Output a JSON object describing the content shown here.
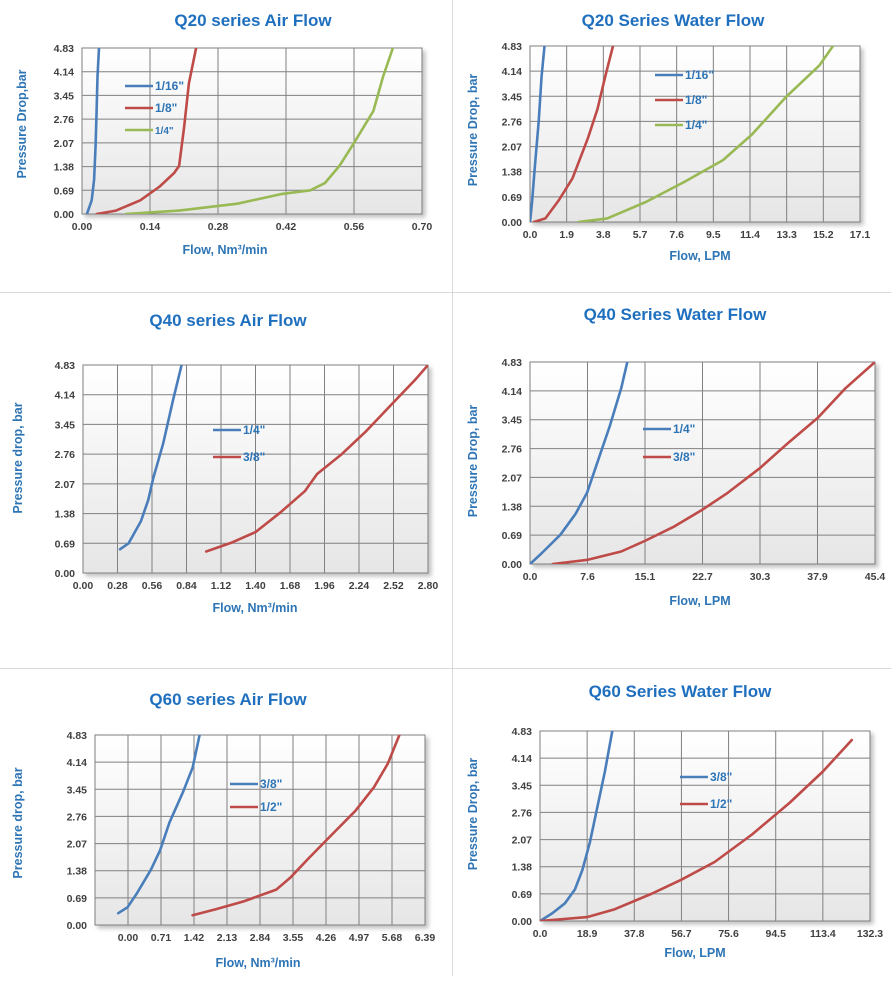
{
  "colors": {
    "blue": "#4a7ebb",
    "red": "#be4b48",
    "green": "#98b954",
    "title": "#1f6fbf",
    "label": "#2e75b6",
    "grid": "#808080",
    "tick": "#404040"
  },
  "chart_data": [
    {
      "type": "line",
      "title": "Q20 series Air Flow",
      "xlabel": "Flow, Nm³/min",
      "ylabel": "Pressure Drop,bar",
      "xticks": [
        "0.00",
        "0.14",
        "0.28",
        "0.42",
        "0.56",
        "0.70"
      ],
      "yticks": [
        "0.00",
        "0.69",
        "1.38",
        "2.07",
        "2.76",
        "3.45",
        "4.14",
        "4.83"
      ],
      "xlim": [
        0,
        0.7
      ],
      "ylim": [
        0,
        4.83
      ],
      "legend": "left",
      "series": [
        {
          "name": "1/16\"",
          "color": "blue",
          "points": [
            [
              0.01,
              0
            ],
            [
              0.02,
              0.4
            ],
            [
              0.025,
              1.0
            ],
            [
              0.028,
              2.0
            ],
            [
              0.03,
              3.0
            ],
            [
              0.032,
              4.0
            ],
            [
              0.035,
              4.83
            ]
          ]
        },
        {
          "name": "1/8\"",
          "color": "red",
          "points": [
            [
              0.03,
              0
            ],
            [
              0.07,
              0.1
            ],
            [
              0.12,
              0.4
            ],
            [
              0.16,
              0.8
            ],
            [
              0.19,
              1.2
            ],
            [
              0.2,
              1.4
            ],
            [
              0.21,
              2.5
            ],
            [
              0.22,
              3.8
            ],
            [
              0.235,
              4.83
            ]
          ]
        },
        {
          "name": "1/4\"",
          "color": "green",
          "points": [
            [
              0.09,
              0
            ],
            [
              0.2,
              0.1
            ],
            [
              0.32,
              0.3
            ],
            [
              0.41,
              0.58
            ],
            [
              0.47,
              0.69
            ],
            [
              0.5,
              0.9
            ],
            [
              0.53,
              1.4
            ],
            [
              0.56,
              2.07
            ],
            [
              0.6,
              3.0
            ],
            [
              0.62,
              4.0
            ],
            [
              0.64,
              4.83
            ]
          ]
        }
      ]
    },
    {
      "type": "line",
      "title": "Q20 Series Water Flow",
      "xlabel": "Flow, LPM",
      "ylabel": "Pressure Drop, bar",
      "xticks": [
        "0.0",
        "1.9",
        "3.8",
        "5.7",
        "7.6",
        "9.5",
        "11.4",
        "13.3",
        "15.2",
        "17.1"
      ],
      "yticks": [
        "0.00",
        "0.69",
        "1.38",
        "2.07",
        "2.76",
        "3.45",
        "4.14",
        "4.83"
      ],
      "xlim": [
        0,
        17.1
      ],
      "ylim": [
        0,
        4.83
      ],
      "legend": "left",
      "series": [
        {
          "name": "1/16\"",
          "color": "blue",
          "points": [
            [
              0,
              0
            ],
            [
              0.1,
              0.5
            ],
            [
              0.25,
              1.5
            ],
            [
              0.45,
              2.76
            ],
            [
              0.6,
              4.0
            ],
            [
              0.75,
              4.83
            ]
          ]
        },
        {
          "name": "1/8\"",
          "color": "red",
          "points": [
            [
              0.2,
              0
            ],
            [
              0.8,
              0.1
            ],
            [
              1.5,
              0.6
            ],
            [
              2.2,
              1.2
            ],
            [
              3.0,
              2.3
            ],
            [
              3.5,
              3.1
            ],
            [
              3.9,
              4.0
            ],
            [
              4.3,
              4.83
            ]
          ]
        },
        {
          "name": "1/4\"",
          "color": "green",
          "points": [
            [
              2.5,
              0
            ],
            [
              4.0,
              0.1
            ],
            [
              6.0,
              0.55
            ],
            [
              8.0,
              1.1
            ],
            [
              10.0,
              1.7
            ],
            [
              11.5,
              2.4
            ],
            [
              13.3,
              3.45
            ],
            [
              15.0,
              4.3
            ],
            [
              15.7,
              4.83
            ]
          ]
        }
      ]
    },
    {
      "type": "line",
      "title": "Q40 series Air Flow",
      "xlabel": "Flow, Nm³/min",
      "ylabel": "Pressure drop, bar",
      "xticks": [
        "0.00",
        "0.28",
        "0.56",
        "0.84",
        "1.12",
        "1.40",
        "1.68",
        "1.96",
        "2.24",
        "2.52",
        "2.80"
      ],
      "yticks": [
        "0.00",
        "0.69",
        "1.38",
        "2.07",
        "2.76",
        "3.45",
        "4.14",
        "4.83"
      ],
      "xlim": [
        0,
        2.8
      ],
      "ylim": [
        0,
        4.83
      ],
      "legend": "center",
      "series": [
        {
          "name": "1/4\"",
          "color": "blue",
          "points": [
            [
              0.3,
              0.55
            ],
            [
              0.37,
              0.69
            ],
            [
              0.47,
              1.2
            ],
            [
              0.53,
              1.7
            ],
            [
              0.57,
              2.2
            ],
            [
              0.65,
              3.0
            ],
            [
              0.73,
              4.0
            ],
            [
              0.8,
              4.83
            ]
          ]
        },
        {
          "name": "3/8\"",
          "color": "red",
          "points": [
            [
              1.0,
              0.5
            ],
            [
              1.2,
              0.7
            ],
            [
              1.4,
              0.95
            ],
            [
              1.6,
              1.4
            ],
            [
              1.8,
              1.9
            ],
            [
              1.9,
              2.3
            ],
            [
              2.1,
              2.76
            ],
            [
              2.3,
              3.3
            ],
            [
              2.5,
              3.9
            ],
            [
              2.7,
              4.5
            ],
            [
              2.8,
              4.83
            ]
          ]
        }
      ]
    },
    {
      "type": "line",
      "title": "Q40 Series Water Flow",
      "xlabel": "Flow, LPM",
      "ylabel": "Pressure Drop, bar",
      "xticks": [
        "0.0",
        "7.6",
        "15.1",
        "22.7",
        "30.3",
        "37.9",
        "45.4"
      ],
      "yticks": [
        "0.00",
        "0.69",
        "1.38",
        "2.07",
        "2.76",
        "3.45",
        "4.14",
        "4.83"
      ],
      "xlim": [
        0,
        45.4
      ],
      "ylim": [
        0,
        4.83
      ],
      "legend": "center",
      "series": [
        {
          "name": "1/4\"",
          "color": "blue",
          "points": [
            [
              0,
              0
            ],
            [
              1.5,
              0.25
            ],
            [
              4.0,
              0.7
            ],
            [
              6.0,
              1.2
            ],
            [
              7.5,
              1.7
            ],
            [
              9.0,
              2.5
            ],
            [
              10.5,
              3.3
            ],
            [
              12.0,
              4.2
            ],
            [
              12.8,
              4.83
            ]
          ]
        },
        {
          "name": "3/8\"",
          "color": "red",
          "points": [
            [
              3.0,
              0
            ],
            [
              7.6,
              0.1
            ],
            [
              12.0,
              0.3
            ],
            [
              15.1,
              0.55
            ],
            [
              19.0,
              0.9
            ],
            [
              22.7,
              1.3
            ],
            [
              26.0,
              1.7
            ],
            [
              30.3,
              2.3
            ],
            [
              34.0,
              2.9
            ],
            [
              37.9,
              3.5
            ],
            [
              41.5,
              4.2
            ],
            [
              45.4,
              4.83
            ]
          ]
        }
      ]
    },
    {
      "type": "line",
      "title": "Q60 series Air Flow",
      "xlabel": "Flow, Nm³/min",
      "ylabel": "Pressure drop, bar",
      "xticks": [
        "0.00",
        "0.71",
        "1.42",
        "2.13",
        "2.84",
        "3.55",
        "4.26",
        "4.97",
        "5.68",
        "6.39"
      ],
      "yticks": [
        "0.00",
        "0.69",
        "1.38",
        "2.07",
        "2.76",
        "3.45",
        "4.14",
        "4.83"
      ],
      "xlim": [
        0,
        7.1
      ],
      "ylim": [
        0,
        4.83
      ],
      "legend": "center",
      "series": [
        {
          "name": "3/8\"",
          "color": "blue",
          "points": [
            [
              0.5,
              0.3
            ],
            [
              0.7,
              0.45
            ],
            [
              0.9,
              0.8
            ],
            [
              1.2,
              1.4
            ],
            [
              1.4,
              1.9
            ],
            [
              1.6,
              2.6
            ],
            [
              1.9,
              3.4
            ],
            [
              2.1,
              4.0
            ],
            [
              2.25,
              4.83
            ]
          ]
        },
        {
          "name": "1/2\"",
          "color": "red",
          "points": [
            [
              2.1,
              0.25
            ],
            [
              2.6,
              0.4
            ],
            [
              3.2,
              0.6
            ],
            [
              3.9,
              0.9
            ],
            [
              4.2,
              1.2
            ],
            [
              4.6,
              1.7
            ],
            [
              5.1,
              2.3
            ],
            [
              5.6,
              2.9
            ],
            [
              6.0,
              3.5
            ],
            [
              6.3,
              4.1
            ],
            [
              6.55,
              4.83
            ]
          ]
        }
      ]
    },
    {
      "type": "line",
      "title": "Q60 Series Water Flow",
      "xlabel": "Flow, LPM",
      "ylabel": "Pressure Drop, bar",
      "xticks": [
        "0.0",
        "18.9",
        "37.8",
        "56.7",
        "75.6",
        "94.5",
        "113.4",
        "132.3"
      ],
      "yticks": [
        "0.00",
        "0.69",
        "1.38",
        "2.07",
        "2.76",
        "3.45",
        "4.14",
        "4.83"
      ],
      "xlim": [
        0,
        132.3
      ],
      "ylim": [
        0,
        4.83
      ],
      "legend": "center",
      "series": [
        {
          "name": "3/8\"",
          "color": "blue",
          "points": [
            [
              0,
              0
            ],
            [
              5,
              0.2
            ],
            [
              10,
              0.45
            ],
            [
              14,
              0.8
            ],
            [
              17,
              1.3
            ],
            [
              20,
              2.0
            ],
            [
              23,
              2.9
            ],
            [
              26,
              3.8
            ],
            [
              29,
              4.83
            ]
          ]
        },
        {
          "name": "1/2\"",
          "color": "red",
          "points": [
            [
              0,
              0
            ],
            [
              18.9,
              0.1
            ],
            [
              30,
              0.3
            ],
            [
              45,
              0.7
            ],
            [
              56.7,
              1.05
            ],
            [
              70,
              1.5
            ],
            [
              85,
              2.2
            ],
            [
              100,
              3.0
            ],
            [
              113.4,
              3.8
            ],
            [
              125,
              4.6
            ]
          ]
        }
      ]
    }
  ]
}
